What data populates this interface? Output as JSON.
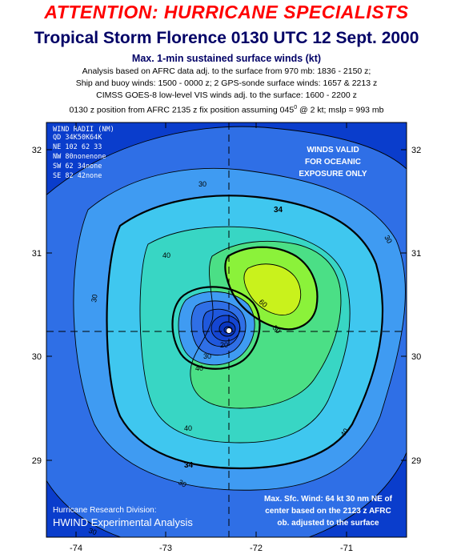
{
  "header": {
    "attention": "ATTENTION: HURRICANE SPECIALISTS",
    "title": "Tropical Storm Florence 0130 UTC 12 Sept. 2000",
    "subtitle": "Max. 1-min sustained surface winds (kt)",
    "line1": "Analysis based on AFRC data adj. to the surface from 970 mb: 1836 - 2150 z;",
    "line2": "Ship and buoy winds: 1500 - 0000 z; 2 GPS-sonde surface winds: 1657 & 2213 z",
    "line3": "CIMSS GOES-8 low-level VIS winds adj. to the surface: 1600 - 2200 z",
    "line4_a": "0130 z position from AFRC 2135 z fix position assuming 045",
    "line4_sup": "0",
    "line4_b": " @ 2 kt; mslp = 993 mb"
  },
  "map": {
    "lon_ticks": [
      "-74",
      "-73",
      "-72",
      "-71"
    ],
    "lat_ticks": [
      "32",
      "31",
      "30",
      "29"
    ],
    "lon_range": [
      -74.6,
      -70.3
    ],
    "lat_range": [
      28.2,
      32.2
    ],
    "center": {
      "lon": -72.3,
      "lat": 30.24
    },
    "colors": {
      "deep_blue": "#0a3dcc",
      "mid_blue": "#2f6fe6",
      "light_blue": "#3f9bf2",
      "cyan": "#3fc7ef",
      "teal": "#38d6c4",
      "green": "#4bdf86",
      "bright_green": "#8bf23a",
      "yellow_green": "#c9f21c"
    }
  },
  "contour_labels": {
    "c30a": "30",
    "c30b": "30",
    "c30c": "30",
    "c30d": "30",
    "c30e": "30",
    "c34a": "34",
    "c34b": "34",
    "c40a": "40",
    "c40b": "40",
    "c40c": "40",
    "c40d": "40",
    "c50": "50",
    "c60": "60",
    "c20": "20",
    "c30in": "30"
  },
  "wind_radii": {
    "title": "WIND RADII (NM)",
    "header": "QD 34K50K64K",
    "rows": [
      "NE 102  62  33",
      "NW  80nonenone",
      "SW  62  34none",
      "SE  82  42none"
    ]
  },
  "winds_valid": [
    "WINDS VALID",
    "FOR OCEANIC",
    "EXPOSURE ONLY"
  ],
  "max_wind": [
    "Max. Sfc. Wind: 64 kt 30 nm NE of",
    "center based on the 2123 z AFRC",
    "ob. adjusted to the surface"
  ],
  "credits": {
    "division": "Hurricane Research Division:",
    "analysis": "HWIND Experimental Analysis"
  }
}
